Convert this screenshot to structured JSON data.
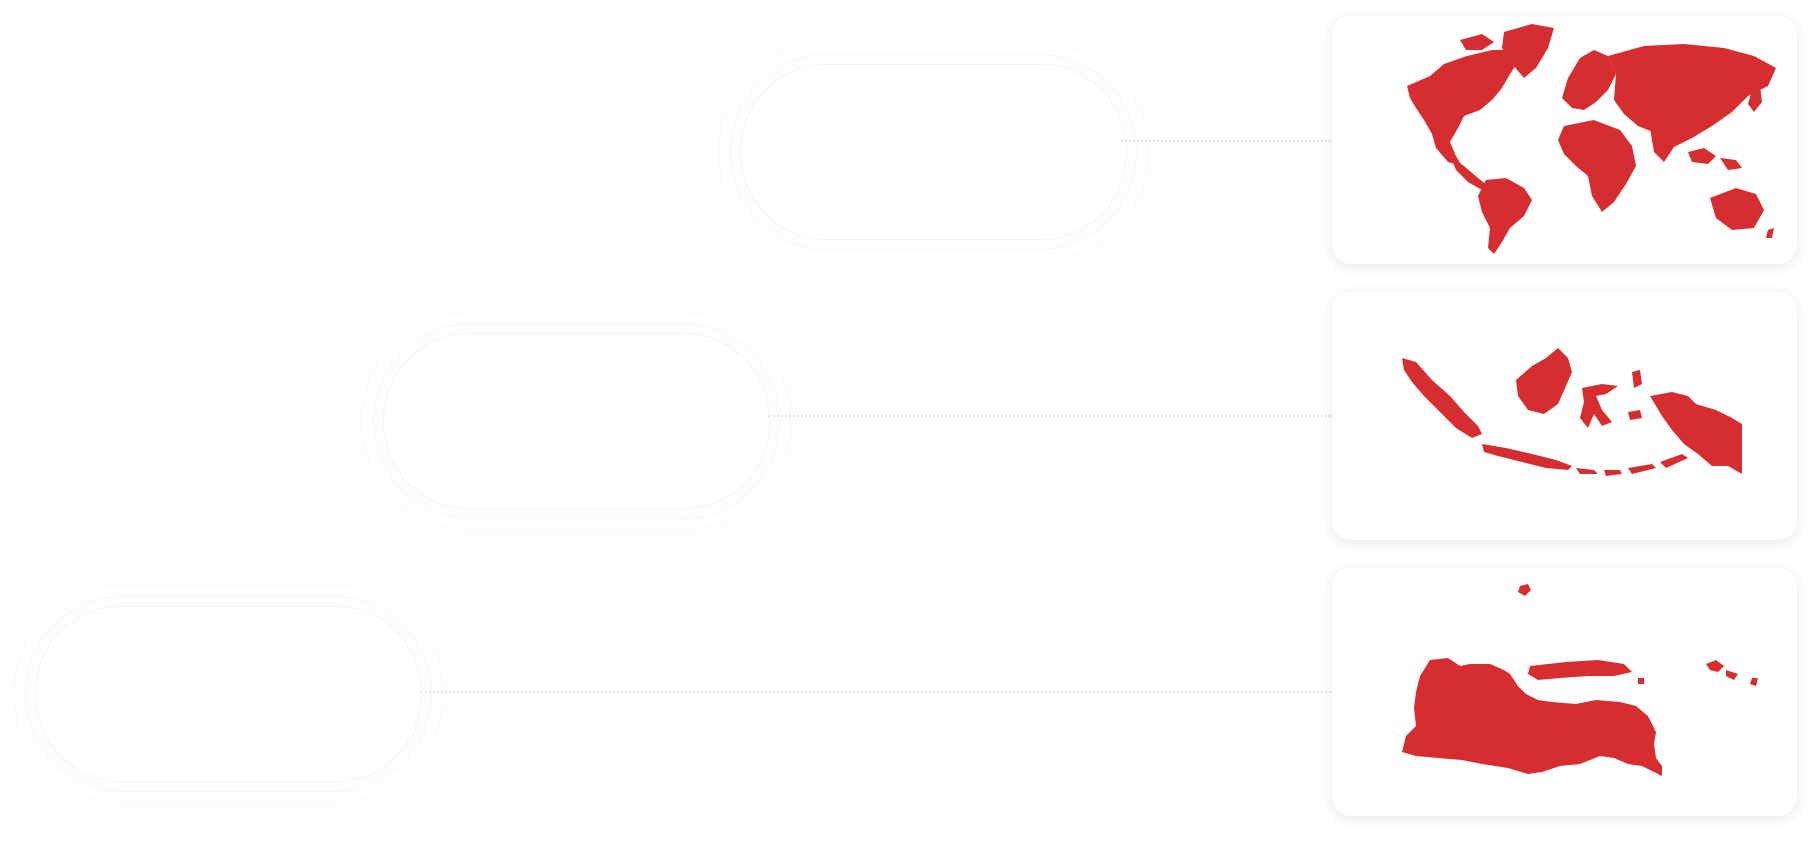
{
  "colors": {
    "map_fill": "#d62e30",
    "background": "#ffffff",
    "connector": "#e3e3e3"
  },
  "levels": [
    {
      "id": "world",
      "label": "",
      "map_icon": "world-map-icon"
    },
    {
      "id": "indonesia",
      "label": "",
      "map_icon": "indonesia-map-icon"
    },
    {
      "id": "east-java",
      "label": "",
      "map_icon": "east-java-map-icon"
    }
  ]
}
